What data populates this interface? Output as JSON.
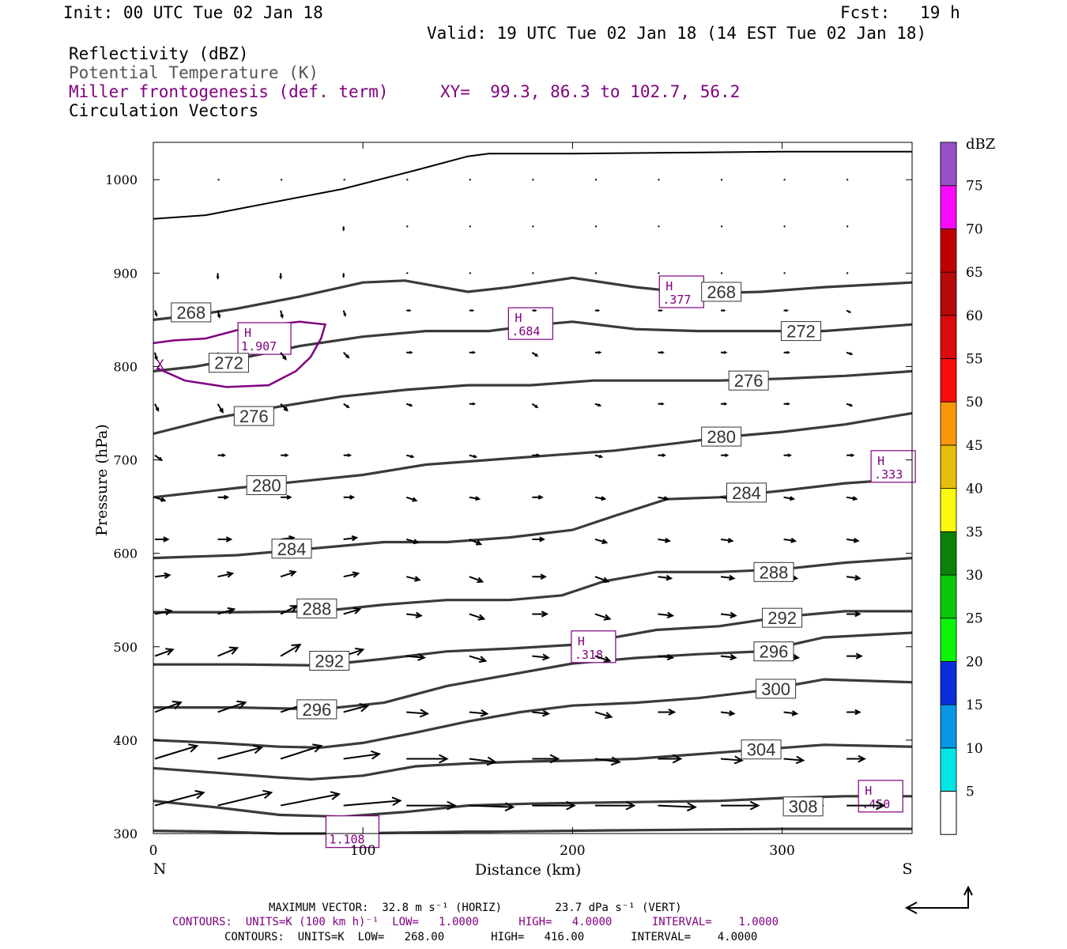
{
  "header": {
    "init": "Init: 00 UTC Tue 02 Jan 18",
    "fcst": "Fcst:   19 h",
    "valid": "Valid: 19 UTC Tue 02 Jan 18 (14 EST Tue 02 Jan 18)",
    "fields": [
      "Reflectivity (dBZ)",
      "Potential Temperature (K)",
      "Miller frontogenesis (def. term)",
      "Circulation Vectors"
    ],
    "xy": "XY=  99.3, 86.3 to 102.7, 56.2"
  },
  "colors": {
    "theta": "#3a3a3a",
    "frontogenesis": "#800080",
    "vectors": "#000000"
  },
  "chart_data": {
    "type": "line",
    "xlabel": "Distance (km)",
    "ylabel": "Pressure (hPa)",
    "xlim": [
      0,
      362
    ],
    "ylim": [
      1040,
      300
    ],
    "x_ticks": [
      0,
      100,
      200,
      300
    ],
    "y_ticks": [
      300,
      400,
      500,
      600,
      700,
      800,
      900,
      1000
    ],
    "left_end_label": "N",
    "right_end_label": "S",
    "theta_contours": [
      {
        "label": "308",
        "x": [
          0,
          30,
          60,
          90,
          120,
          150,
          180,
          210,
          240,
          270,
          300,
          330,
          362
        ],
        "p": [
          335,
          328,
          320,
          318,
          323,
          330,
          332,
          333,
          334,
          335,
          338,
          340,
          340
        ],
        "lx": 310,
        "lp": 329
      },
      {
        "label": "304",
        "x": [
          0,
          30,
          60,
          75,
          100,
          125,
          150,
          175,
          200,
          230,
          260,
          290,
          320,
          362
        ],
        "p": [
          370,
          365,
          360,
          358,
          362,
          372,
          375,
          377,
          378,
          380,
          385,
          390,
          395,
          393
        ],
        "lx": 290,
        "lp": 390
      },
      {
        "label": "300",
        "x": [
          0,
          30,
          60,
          80,
          100,
          125,
          150,
          175,
          200,
          230,
          260,
          290,
          320,
          362
        ],
        "p": [
          400,
          397,
          393,
          392,
          397,
          408,
          420,
          430,
          437,
          440,
          445,
          453,
          465,
          462
        ],
        "lx": 297,
        "lp": 455
      },
      {
        "label": "296",
        "x": [
          0,
          40,
          80,
          110,
          140,
          170,
          200,
          230,
          260,
          290,
          320,
          362
        ],
        "p": [
          435,
          435,
          433,
          440,
          458,
          470,
          482,
          488,
          492,
          495,
          510,
          515
        ],
        "lx": 78,
        "lp": 433,
        "lx2": 296,
        "lp2": 495
      },
      {
        "label": "292",
        "x": [
          0,
          40,
          80,
          110,
          140,
          170,
          200,
          215,
          240,
          270,
          300,
          330,
          362
        ],
        "p": [
          481,
          481,
          480,
          487,
          495,
          498,
          502,
          508,
          518,
          522,
          532,
          538,
          538
        ],
        "lx": 84,
        "lp": 485,
        "lx2": 300,
        "lp2": 531
      },
      {
        "label": "288",
        "x": [
          0,
          40,
          80,
          110,
          140,
          170,
          195,
          215,
          240,
          270,
          300,
          330,
          362
        ],
        "p": [
          537,
          537,
          538,
          545,
          550,
          550,
          555,
          570,
          580,
          580,
          583,
          590,
          595
        ],
        "lx": 78,
        "lp": 541,
        "lx2": 296,
        "lp2": 580
      },
      {
        "label": "284",
        "x": [
          0,
          40,
          70,
          110,
          140,
          170,
          200,
          220,
          245,
          270,
          300,
          330,
          362
        ],
        "p": [
          595,
          598,
          604,
          612,
          612,
          617,
          625,
          640,
          658,
          660,
          667,
          675,
          680
        ],
        "lx": 66,
        "lp": 605,
        "lx2": 283,
        "lp2": 665
      },
      {
        "label": "280",
        "x": [
          0,
          40,
          70,
          100,
          130,
          160,
          190,
          220,
          250,
          275,
          300,
          330,
          362
        ],
        "p": [
          660,
          670,
          677,
          684,
          695,
          700,
          705,
          710,
          718,
          725,
          730,
          738,
          750
        ],
        "lx": 54,
        "lp": 673,
        "lx2": 271,
        "lp2": 725
      },
      {
        "label": "276",
        "x": [
          0,
          30,
          60,
          90,
          120,
          150,
          180,
          210,
          240,
          270,
          300,
          330,
          362
        ],
        "p": [
          728,
          745,
          757,
          768,
          775,
          780,
          780,
          785,
          785,
          785,
          787,
          790,
          795
        ],
        "lx": 48,
        "lp": 747,
        "lx2": 284,
        "lp2": 785
      },
      {
        "label": "272",
        "x": [
          0,
          20,
          40,
          70,
          100,
          130,
          160,
          185,
          200,
          230,
          260,
          290,
          320,
          362
        ],
        "p": [
          795,
          800,
          808,
          822,
          832,
          838,
          838,
          845,
          848,
          840,
          838,
          838,
          838,
          845
        ],
        "lx": 36,
        "lp": 804,
        "lx2": 309,
        "lp2": 838
      },
      {
        "label": "268",
        "x": [
          0,
          20,
          40,
          70,
          100,
          120,
          150,
          170,
          200,
          230,
          260,
          290,
          320,
          362
        ],
        "p": [
          850,
          855,
          862,
          875,
          890,
          892,
          880,
          885,
          895,
          885,
          878,
          880,
          885,
          890
        ],
        "lx": 18,
        "lp": 858,
        "lx2": 271,
        "lp2": 880
      },
      {
        "label": "",
        "x": [
          0,
          30,
          60,
          90,
          120,
          150,
          160,
          200,
          250,
          300,
          362
        ],
        "p": [
          303,
          302,
          300,
          300,
          301,
          302,
          302,
          303,
          304,
          305,
          305
        ]
      }
    ],
    "surface": {
      "x": [
        0,
        25,
        55,
        90,
        125,
        150,
        160,
        200,
        250,
        300,
        362
      ],
      "p": [
        958,
        962,
        975,
        990,
        1010,
        1025,
        1028,
        1028,
        1029,
        1030,
        1030
      ]
    },
    "frontogenesis_contours": [
      {
        "x": [
          2,
          15,
          35,
          55,
          68,
          75,
          80,
          82,
          70,
          45,
          25,
          10,
          0
        ],
        "p": [
          798,
          785,
          778,
          780,
          795,
          810,
          830,
          845,
          848,
          842,
          830,
          828,
          825
        ]
      }
    ],
    "frontogenesis_maxima": [
      {
        "label": "H",
        "value": ".450",
        "x": 347,
        "p": 340
      },
      {
        "label": "H",
        "value": ".318",
        "x": 210,
        "p": 500
      },
      {
        "label": "H",
        "value": "1.907",
        "x": 53,
        "p": 830
      },
      {
        "label": "H",
        "value": ".684",
        "x": 180,
        "p": 846
      },
      {
        "label": "H",
        "value": ".377",
        "x": 252,
        "p": 880
      },
      {
        "label": "H",
        "value": ".333",
        "x": 353,
        "p": 693
      },
      {
        "label": "",
        "value": "1.108",
        "x": 95,
        "p": 302
      }
    ],
    "x_marker": {
      "label": "X",
      "x": 2,
      "p": 802
    },
    "vector_x": [
      0,
      30,
      60,
      90,
      120,
      150,
      180,
      210,
      240,
      270,
      300,
      330
    ],
    "vector_p": [
      330,
      380,
      430,
      490,
      535,
      575,
      615,
      660,
      705,
      760,
      815,
      860,
      900,
      950,
      1000
    ],
    "vectors": [
      [
        [
          30,
          8
        ],
        [
          33,
          8
        ],
        [
          36,
          7
        ],
        [
          35,
          3
        ],
        [
          30,
          0
        ],
        [
          27,
          -1
        ],
        [
          26,
          0
        ],
        [
          24,
          0
        ],
        [
          23,
          -1
        ],
        [
          23,
          0
        ],
        [
          24,
          0
        ],
        [
          23,
          0
        ]
      ],
      [
        [
          26,
          8
        ],
        [
          27,
          7
        ],
        [
          25,
          8
        ],
        [
          22,
          3
        ],
        [
          25,
          0
        ],
        [
          16,
          -2
        ],
        [
          16,
          0
        ],
        [
          15,
          -2
        ],
        [
          14,
          0
        ],
        [
          13,
          -1
        ],
        [
          12,
          -1
        ],
        [
          11,
          0
        ]
      ],
      [
        [
          16,
          6
        ],
        [
          17,
          6
        ],
        [
          18,
          6
        ],
        [
          15,
          4
        ],
        [
          13,
          -1
        ],
        [
          11,
          -1
        ],
        [
          10,
          -1
        ],
        [
          10,
          -3
        ],
        [
          10,
          0
        ],
        [
          8,
          -1
        ],
        [
          8,
          -1
        ],
        [
          8,
          0
        ]
      ],
      [
        [
          11,
          4
        ],
        [
          12,
          5
        ],
        [
          12,
          7
        ],
        [
          12,
          4
        ],
        [
          11,
          -1
        ],
        [
          10,
          -3
        ],
        [
          10,
          -1
        ],
        [
          9,
          -3
        ],
        [
          9,
          -1
        ],
        [
          9,
          -1
        ],
        [
          9,
          -1
        ],
        [
          9,
          0
        ]
      ],
      [
        [
          10,
          2
        ],
        [
          10,
          3
        ],
        [
          10,
          5
        ],
        [
          10,
          3
        ],
        [
          9,
          -1
        ],
        [
          9,
          -3
        ],
        [
          9,
          0
        ],
        [
          9,
          -3
        ],
        [
          9,
          -1
        ],
        [
          9,
          -1
        ],
        [
          9,
          -1
        ],
        [
          8,
          0
        ]
      ],
      [
        [
          9,
          1
        ],
        [
          9,
          2
        ],
        [
          9,
          3
        ],
        [
          9,
          2
        ],
        [
          8,
          -2
        ],
        [
          8,
          -3
        ],
        [
          8,
          0
        ],
        [
          8,
          -3
        ],
        [
          8,
          -1
        ],
        [
          8,
          -1
        ],
        [
          8,
          -1
        ],
        [
          8,
          -1
        ]
      ],
      [
        [
          8,
          0
        ],
        [
          8,
          0
        ],
        [
          8,
          1
        ],
        [
          8,
          1
        ],
        [
          7,
          -2
        ],
        [
          7,
          -3
        ],
        [
          7,
          0
        ],
        [
          7,
          -2
        ],
        [
          7,
          -1
        ],
        [
          7,
          -1
        ],
        [
          7,
          -1
        ],
        [
          7,
          -1
        ]
      ],
      [
        [
          6,
          -2
        ],
        [
          6,
          0
        ],
        [
          6,
          0
        ],
        [
          6,
          0
        ],
        [
          6,
          -2
        ],
        [
          6,
          -1
        ],
        [
          6,
          0
        ],
        [
          6,
          -1
        ],
        [
          6,
          -1
        ],
        [
          6,
          -1
        ],
        [
          6,
          -1
        ],
        [
          6,
          -1
        ]
      ],
      [
        [
          4,
          -3
        ],
        [
          4,
          0
        ],
        [
          4,
          0
        ],
        [
          4,
          0
        ],
        [
          4,
          -1
        ],
        [
          4,
          -1
        ],
        [
          4,
          0
        ],
        [
          4,
          -1
        ],
        [
          4,
          0
        ],
        [
          4,
          0
        ],
        [
          4,
          0
        ],
        [
          4,
          0
        ]
      ],
      [
        [
          2,
          -4
        ],
        [
          3,
          -5
        ],
        [
          4,
          -4
        ],
        [
          3,
          -2
        ],
        [
          3,
          -1
        ],
        [
          3,
          0
        ],
        [
          3,
          -2
        ],
        [
          3,
          -1
        ],
        [
          3,
          0
        ],
        [
          3,
          0
        ],
        [
          3,
          0
        ],
        [
          3,
          -1
        ]
      ],
      [
        [
          1,
          -4
        ],
        [
          2,
          -5
        ],
        [
          3,
          -4
        ],
        [
          3,
          -3
        ],
        [
          3,
          0
        ],
        [
          3,
          0
        ],
        [
          3,
          -2
        ],
        [
          3,
          0
        ],
        [
          3,
          0
        ],
        [
          3,
          0
        ],
        [
          3,
          0
        ],
        [
          3,
          -1
        ]
      ],
      [
        [
          1,
          -3
        ],
        [
          1,
          -4
        ],
        [
          1,
          -4
        ],
        [
          1,
          -3
        ],
        [
          2,
          0
        ],
        [
          2,
          0
        ],
        [
          2,
          0
        ],
        [
          2,
          0
        ],
        [
          2,
          0
        ],
        [
          2,
          0
        ],
        [
          2,
          0
        ],
        [
          2,
          -1
        ]
      ],
      [
        [
          0,
          0
        ],
        [
          0,
          -3
        ],
        [
          0,
          -3
        ],
        [
          0,
          -2
        ],
        [
          1,
          0
        ],
        [
          1,
          0
        ],
        [
          1,
          0
        ],
        [
          1,
          0
        ],
        [
          1,
          0
        ],
        [
          1,
          0
        ],
        [
          1,
          0
        ],
        [
          1,
          0
        ]
      ],
      [
        [
          0,
          0
        ],
        [
          0,
          0
        ],
        [
          0,
          0
        ],
        [
          0,
          -2
        ],
        [
          1,
          0
        ],
        [
          1,
          0
        ],
        [
          1,
          0
        ],
        [
          1,
          0
        ],
        [
          1,
          0
        ],
        [
          1,
          0
        ],
        [
          1,
          0
        ],
        [
          1,
          0
        ]
      ],
      [
        [
          0,
          0
        ],
        [
          1,
          0
        ],
        [
          1,
          0
        ],
        [
          1,
          0
        ],
        [
          1,
          0
        ],
        [
          1,
          0
        ],
        [
          1,
          0
        ],
        [
          1,
          0
        ],
        [
          1,
          0
        ],
        [
          1,
          0
        ],
        [
          1,
          0
        ],
        [
          1,
          0
        ]
      ]
    ],
    "colorbar": {
      "title": "dBZ",
      "labels": [
        "5",
        "10",
        "15",
        "20",
        "25",
        "30",
        "35",
        "40",
        "45",
        "50",
        "55",
        "60",
        "65",
        "70",
        "75"
      ],
      "colors": [
        "#00e5e5",
        "#0a96e6",
        "#0a2ed9",
        "#0af50a",
        "#0ac80a",
        "#0a820a",
        "#fafa0a",
        "#e6be0a",
        "#fa960a",
        "#fa0a0a",
        "#dc0a0a",
        "#b40a0a",
        "#c00000",
        "#fa0afa",
        "#9650c8"
      ]
    }
  },
  "footer": {
    "line1": "MAXIMUM VECTOR:  32.8 m s⁻¹ (HORIZ)        23.7 dPa s⁻¹ (VERT)",
    "line2": "CONTOURS:  UNITS=K (100 km h)⁻¹  LOW=   1.0000      HIGH=   4.0000      INTERVAL=    1.0000",
    "line3": "CONTOURS:  UNITS=K  LOW=   268.00       HIGH=   416.00       INTERVAL=    4.0000"
  }
}
